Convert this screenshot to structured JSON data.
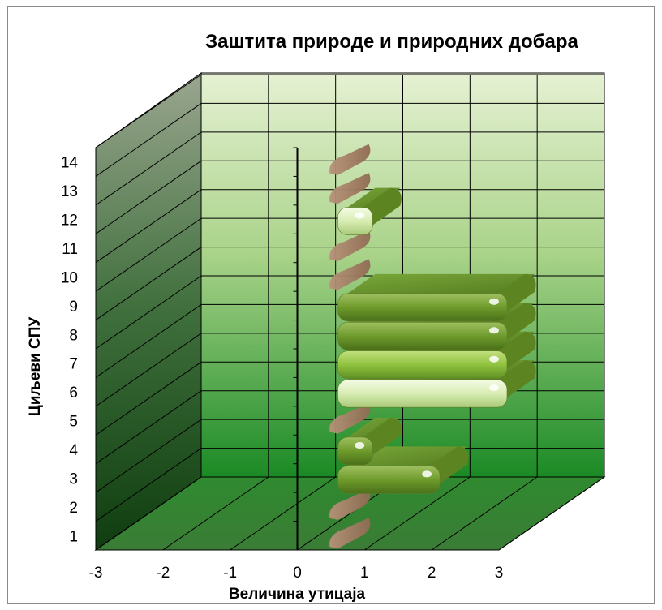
{
  "chart_data": {
    "type": "bar",
    "orientation": "horizontal",
    "title": "Заштита природе и природних добара",
    "xlabel": "Величина утицаја",
    "ylabel": "Циљеви СПУ",
    "categories": [
      "1",
      "2",
      "3",
      "4",
      "5",
      "6",
      "7",
      "8",
      "9",
      "10",
      "11",
      "12",
      "13",
      "14"
    ],
    "values": [
      0,
      0,
      2,
      1,
      0,
      3,
      3,
      3,
      3,
      0,
      0,
      1,
      0,
      0
    ],
    "xlim": [
      -3,
      3
    ],
    "xticks": [
      "-3",
      "-2",
      "-1",
      "0",
      "1",
      "2",
      "3"
    ],
    "grid": true,
    "colors": {
      "bar_light": "#d7edb2",
      "bar_medium": "#8fc23e",
      "bar_dark": "#6e9b2c",
      "zero_marker": "#a98366",
      "wall_top": "#e6f1d3",
      "wall_bottom": "#1a8a25",
      "side_wall_top": "#9aa68f",
      "side_wall_bottom": "#0f3d0f",
      "floor": "#2e7a2e"
    }
  }
}
